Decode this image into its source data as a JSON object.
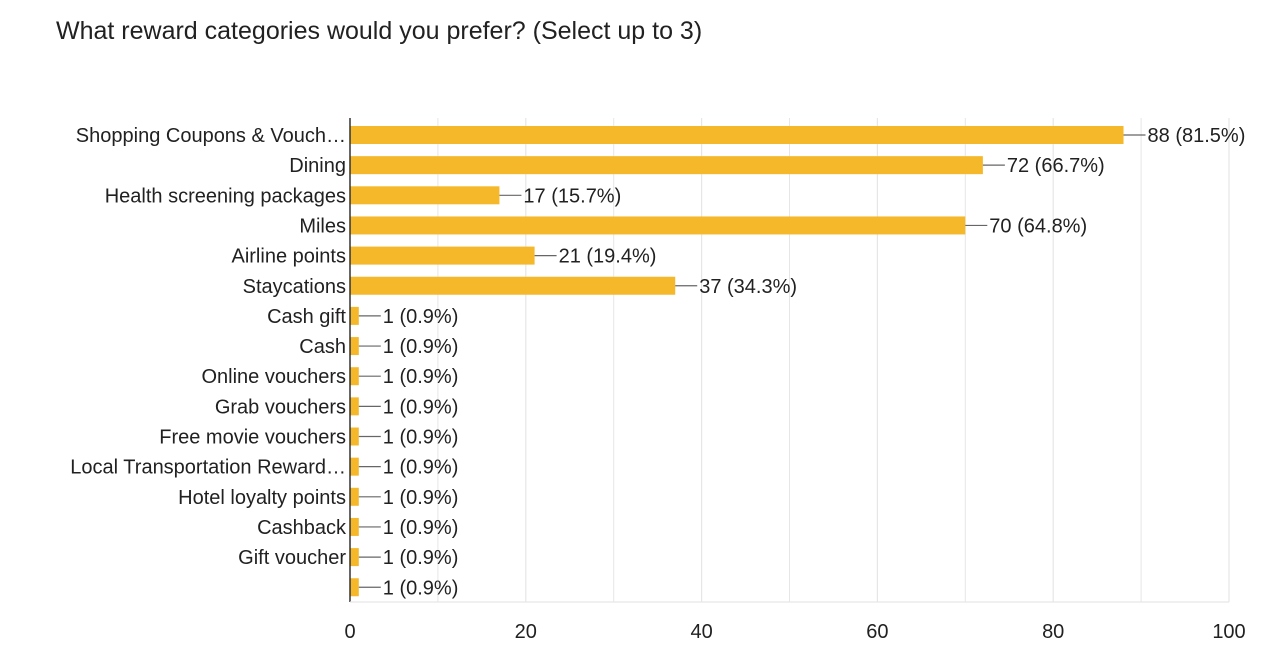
{
  "title": "What reward categories would you prefer? (Select up to 3)",
  "colors": {
    "bar": "#f5b82a",
    "grid": "#e6e6e6",
    "axis": "#333333",
    "leader": "#666666",
    "text": "#212121"
  },
  "chart_data": {
    "type": "bar",
    "orientation": "horizontal",
    "title": "What reward categories would you prefer? (Select up to 3)",
    "xlabel": "",
    "ylabel": "",
    "xlim": [
      0,
      100
    ],
    "xticks": [
      0,
      20,
      40,
      60,
      80,
      100
    ],
    "grid": true,
    "legend": "none",
    "categories": [
      "Shopping Coupons & Vouch…",
      "Dining",
      "Health screening packages",
      "Miles",
      "Airline points",
      "Staycations",
      "Cash gift",
      "Cash",
      "Online vouchers",
      "Grab vouchers",
      "Free movie vouchers",
      "Local Transportation Reward…",
      "Hotel loyalty points",
      "Cashback",
      "Gift voucher",
      ""
    ],
    "values": [
      88,
      72,
      17,
      70,
      21,
      37,
      1,
      1,
      1,
      1,
      1,
      1,
      1,
      1,
      1,
      1
    ],
    "value_labels": [
      "88 (81.5%)",
      "72 (66.7%)",
      "17 (15.7%)",
      "70 (64.8%)",
      "21 (19.4%)",
      "37 (34.3%)",
      "1 (0.9%)",
      "1 (0.9%)",
      "1 (0.9%)",
      "1 (0.9%)",
      "1 (0.9%)",
      "1 (0.9%)",
      "1 (0.9%)",
      "1 (0.9%)",
      "1 (0.9%)",
      "1 (0.9%)"
    ]
  }
}
